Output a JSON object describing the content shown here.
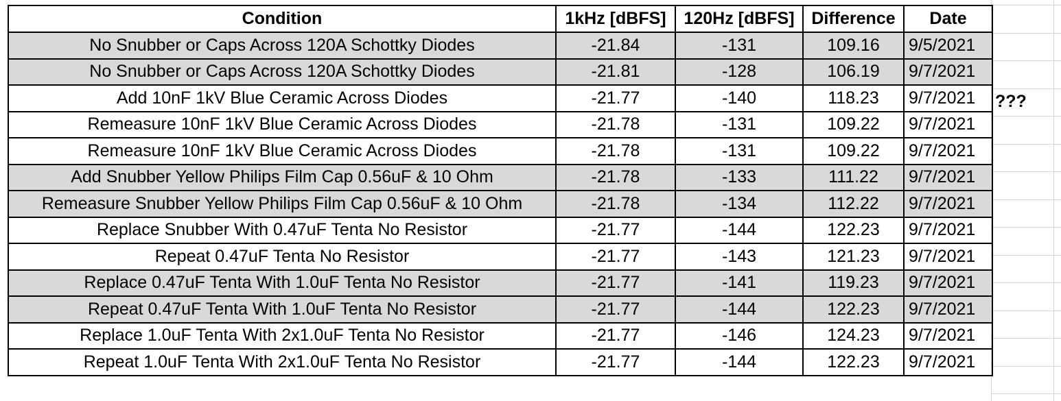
{
  "table": {
    "headers": [
      "Condition",
      "1kHz [dBFS]",
      "120Hz [dBFS]",
      "Difference",
      "Date"
    ],
    "rows": [
      {
        "shaded": true,
        "cells": [
          "No Snubber or Caps Across 120A Schottky Diodes",
          "-21.84",
          "-131",
          "109.16",
          "9/5/2021"
        ]
      },
      {
        "shaded": true,
        "cells": [
          "No Snubber or Caps Across 120A Schottky Diodes",
          "-21.81",
          "-128",
          "106.19",
          "9/7/2021"
        ]
      },
      {
        "shaded": false,
        "cells": [
          "Add 10nF 1kV Blue Ceramic Across Diodes",
          "-21.77",
          "-140",
          "118.23",
          "9/7/2021"
        ]
      },
      {
        "shaded": false,
        "cells": [
          "Remeasure 10nF 1kV Blue Ceramic Across Diodes",
          "-21.78",
          "-131",
          "109.22",
          "9/7/2021"
        ]
      },
      {
        "shaded": false,
        "cells": [
          "Remeasure 10nF 1kV Blue Ceramic Across Diodes",
          "-21.78",
          "-131",
          "109.22",
          "9/7/2021"
        ]
      },
      {
        "shaded": true,
        "cells": [
          "Add Snubber Yellow Philips Film Cap 0.56uF & 10 Ohm",
          "-21.78",
          "-133",
          "111.22",
          "9/7/2021"
        ]
      },
      {
        "shaded": true,
        "cells": [
          "Remeasure Snubber Yellow Philips Film Cap 0.56uF & 10 Ohm",
          "-21.78",
          "-134",
          "112.22",
          "9/7/2021"
        ]
      },
      {
        "shaded": false,
        "cells": [
          "Replace Snubber With 0.47uF Tenta No Resistor",
          "-21.77",
          "-144",
          "122.23",
          "9/7/2021"
        ]
      },
      {
        "shaded": false,
        "cells": [
          "Repeat 0.47uF Tenta No Resistor",
          "-21.77",
          "-143",
          "121.23",
          "9/7/2021"
        ]
      },
      {
        "shaded": true,
        "cells": [
          "Replace 0.47uF Tenta With 1.0uF Tenta No Resistor",
          "-21.77",
          "-141",
          "119.23",
          "9/7/2021"
        ]
      },
      {
        "shaded": true,
        "cells": [
          "Repeat 0.47uF Tenta With 1.0uF Tenta No Resistor",
          "-21.77",
          "-144",
          "122.23",
          "9/7/2021"
        ]
      },
      {
        "shaded": false,
        "cells": [
          "Replace 1.0uF Tenta With 2x1.0uF Tenta No Resistor",
          "-21.77",
          "-146",
          "124.23",
          "9/7/2021"
        ]
      },
      {
        "shaded": false,
        "cells": [
          "Repeat 1.0uF Tenta With 2x1.0uF Tenta No Resistor",
          "-21.77",
          "-144",
          "122.23",
          "9/7/2021"
        ]
      }
    ]
  },
  "side_note": "???",
  "colors": {
    "shaded_row": "#d9d9d9",
    "border": "#000000",
    "gridline": "#d4d4d4"
  }
}
